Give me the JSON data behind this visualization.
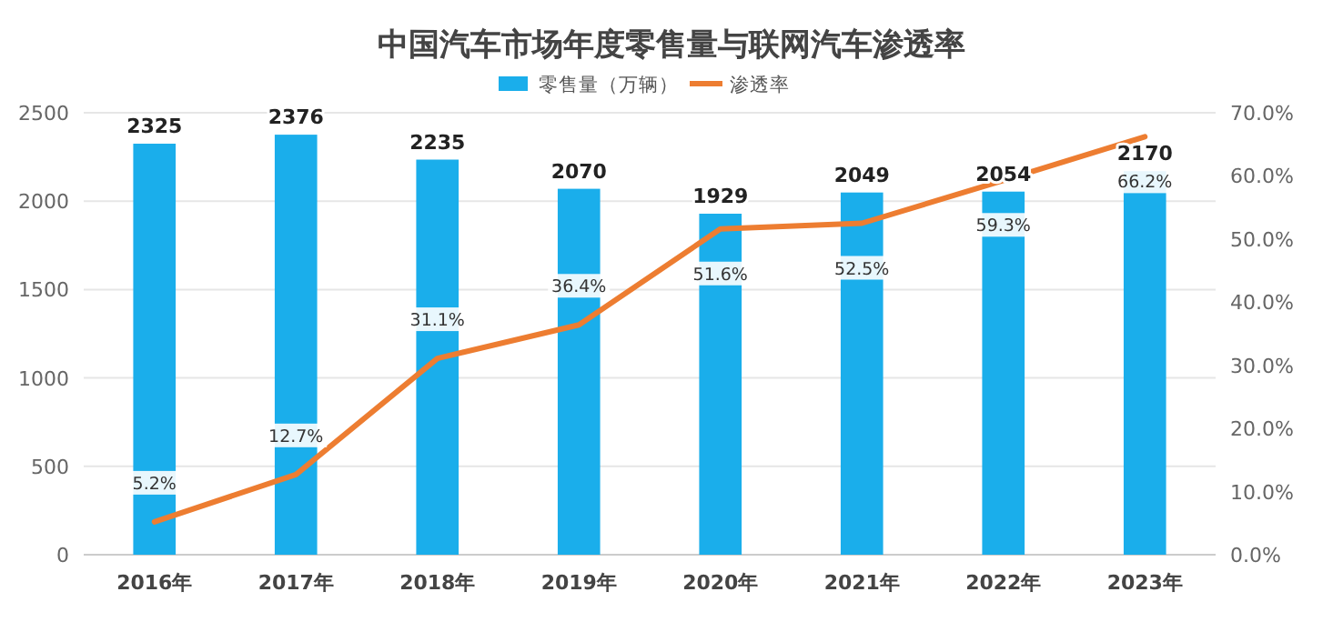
{
  "chart_data": {
    "type": "bar",
    "title": "中国汽车市场年度零售量与联网汽车渗透率",
    "categories": [
      "2016年",
      "2017年",
      "2018年",
      "2019年",
      "2020年",
      "2021年",
      "2022年",
      "2023年"
    ],
    "series": [
      {
        "name": "零售量（万辆）",
        "color": "#1aaeeb",
        "values": [
          2325,
          2376,
          2235,
          2070,
          1929,
          2049,
          2054,
          2170
        ],
        "value_labels": [
          "2325",
          "2376",
          "2235",
          "2070",
          "1929",
          "2049",
          "2054",
          "2170"
        ]
      },
      {
        "name": "渗透率",
        "type": "line",
        "axis": "y2",
        "color": "#ed7d31",
        "values": [
          5.2,
          12.7,
          31.1,
          36.4,
          51.6,
          52.5,
          59.3,
          66.2
        ],
        "value_labels": [
          "5.2%",
          "12.7%",
          "31.1%",
          "36.4%",
          "51.6%",
          "52.5%",
          "59.3%",
          "66.2%"
        ]
      }
    ],
    "ylim": [
      0,
      2500
    ],
    "yticks": [
      0,
      500,
      1000,
      1500,
      2000,
      2500
    ],
    "y2lim": [
      0,
      70
    ],
    "y2ticks": [
      {
        "value": 0,
        "label": "0.0%"
      },
      {
        "value": 10,
        "label": "10.0%"
      },
      {
        "value": 20,
        "label": "20.0%"
      },
      {
        "value": 30,
        "label": "30.0%"
      },
      {
        "value": 40,
        "label": "40.0%"
      },
      {
        "value": 50,
        "label": "50.0%"
      },
      {
        "value": 60,
        "label": "60.0%"
      },
      {
        "value": 70,
        "label": "70.0%"
      }
    ],
    "grid": "y",
    "legend": "top",
    "marker": "none",
    "line_style": "solid"
  }
}
